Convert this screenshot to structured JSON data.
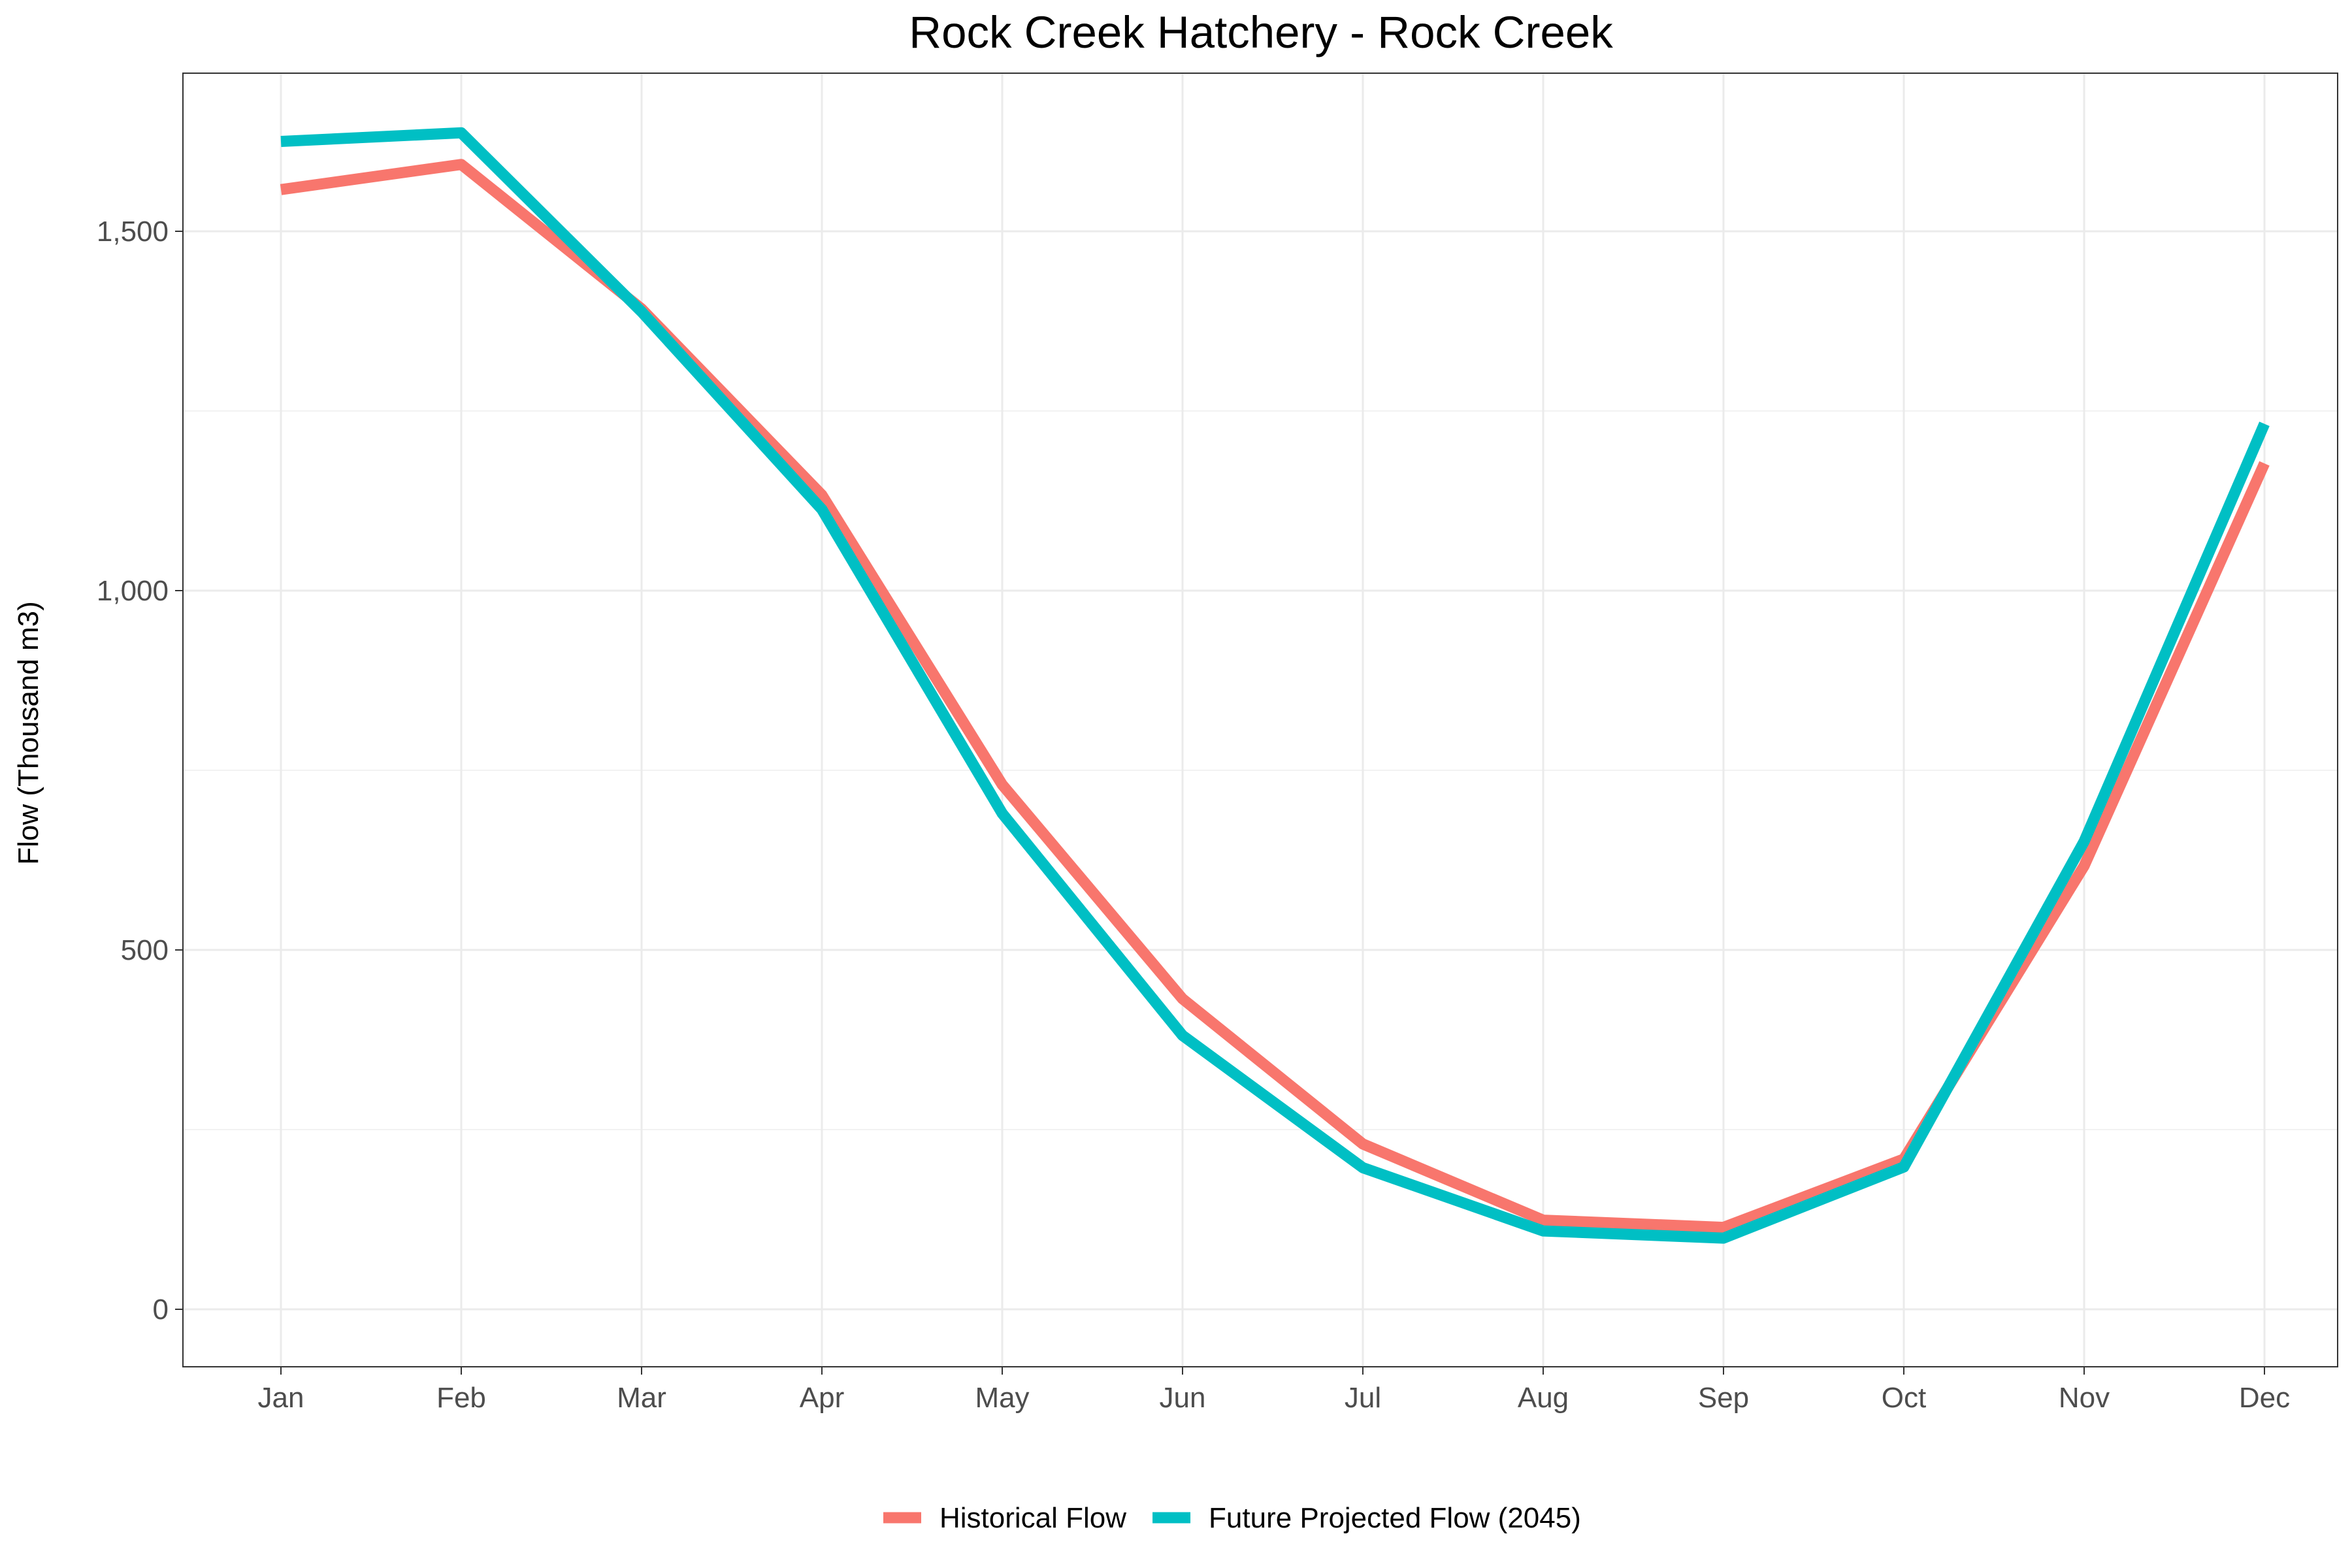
{
  "chart_data": {
    "type": "line",
    "title": "Rock Creek Hatchery - Rock Creek",
    "xlabel": "",
    "ylabel": "Flow (Thousand m3)",
    "categories": [
      "Jan",
      "Feb",
      "Mar",
      "Apr",
      "May",
      "Jun",
      "Jul",
      "Aug",
      "Sep",
      "Oct",
      "Nov",
      "Dec"
    ],
    "ylim": [
      -80,
      1720
    ],
    "y_ticks": [
      0,
      500,
      1000,
      1500
    ],
    "y_tick_labels": [
      "0",
      "500",
      "1,000",
      "1,500"
    ],
    "grid": true,
    "legend_position": "bottom",
    "series": [
      {
        "name": "Historical Flow",
        "color": "#F8766D",
        "values": [
          1558,
          1593,
          1392,
          1133,
          730,
          432,
          230,
          124,
          114,
          209,
          617,
          1177
        ]
      },
      {
        "name": "Future Projected Flow (2045)",
        "color": "#00BFC4",
        "values": [
          1625,
          1637,
          1388,
          1113,
          690,
          381,
          197,
          109,
          99,
          198,
          651,
          1232
        ]
      }
    ]
  }
}
